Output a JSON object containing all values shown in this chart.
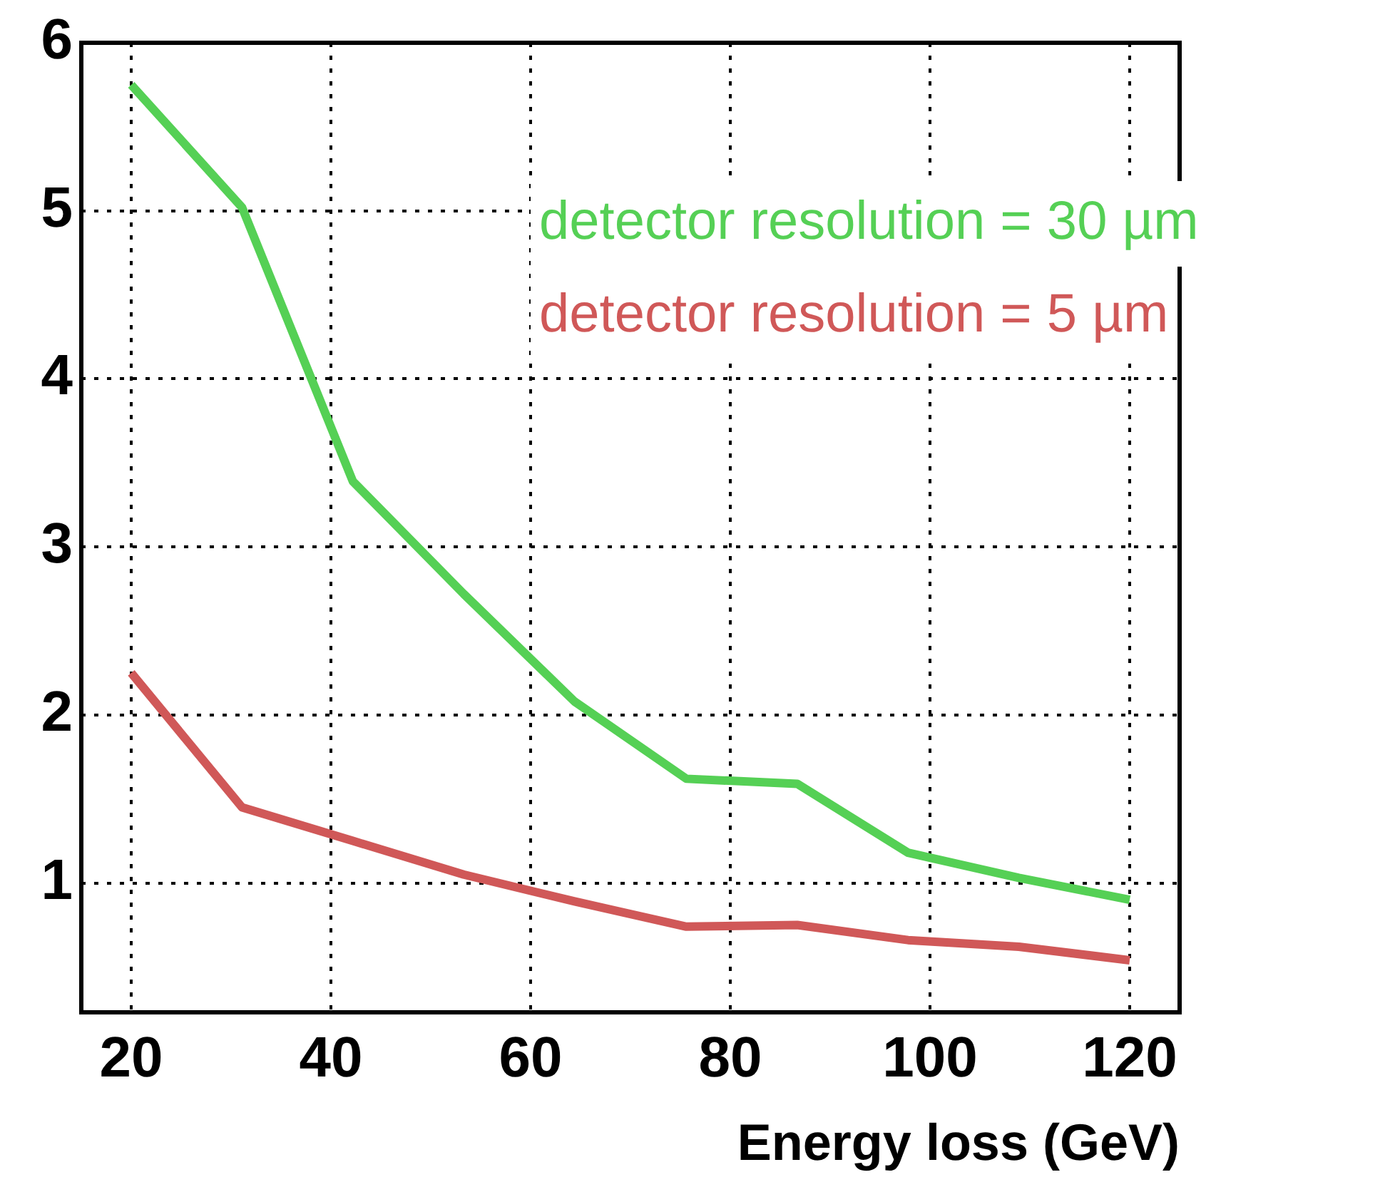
{
  "chart_data": {
    "type": "line",
    "xlabel": "Energy loss (GeV)",
    "x": [
      20,
      31.1,
      42.2,
      53.3,
      64.4,
      75.6,
      86.7,
      97.8,
      108.9,
      120
    ],
    "series": [
      {
        "name": "detector resolution = 30 µm",
        "color": "#55d055",
        "values": [
          5.75,
          5.02,
          3.39,
          2.72,
          2.08,
          1.62,
          1.59,
          1.18,
          1.03,
          0.9
        ]
      },
      {
        "name": "detector resolution = 5 µm",
        "color": "#d05858",
        "values": [
          2.25,
          1.45,
          1.25,
          1.05,
          0.89,
          0.74,
          0.75,
          0.66,
          0.62,
          0.54
        ]
      }
    ],
    "xlim": [
      15,
      125
    ],
    "xticks": [
      20,
      40,
      60,
      80,
      100,
      120
    ],
    "ylim": [
      0.23,
      6
    ],
    "yticks": [
      1,
      2,
      3,
      4,
      5,
      6
    ],
    "grid": true,
    "legend": "top right",
    "marker": "none",
    "line_style": "solid"
  }
}
